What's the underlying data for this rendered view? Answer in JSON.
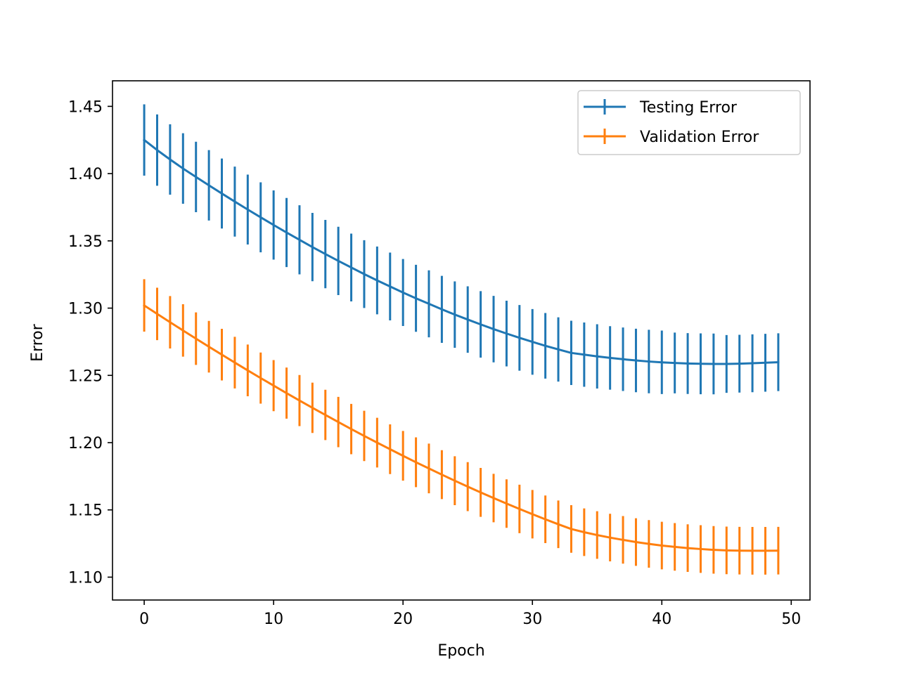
{
  "chart_data": {
    "type": "line",
    "title": "",
    "xlabel": "Epoch",
    "ylabel": "Error",
    "xlim": [
      -2.45,
      51.45
    ],
    "ylim": [
      1.083,
      1.469
    ],
    "xticks": [
      0,
      10,
      20,
      30,
      40,
      50
    ],
    "xtick_labels": [
      "0",
      "10",
      "20",
      "30",
      "40",
      "50"
    ],
    "yticks": [
      1.1,
      1.15,
      1.2,
      1.25,
      1.3,
      1.35,
      1.4,
      1.45
    ],
    "ytick_labels": [
      "1.10",
      "1.15",
      "1.20",
      "1.25",
      "1.30",
      "1.35",
      "1.40",
      "1.45"
    ],
    "grid": false,
    "legend_position": "top-right",
    "x": [
      0,
      1,
      2,
      3,
      4,
      5,
      6,
      7,
      8,
      9,
      10,
      11,
      12,
      13,
      14,
      15,
      16,
      17,
      18,
      19,
      20,
      21,
      22,
      23,
      24,
      25,
      26,
      27,
      28,
      29,
      30,
      31,
      32,
      33,
      34,
      35,
      36,
      37,
      38,
      39,
      40,
      41,
      42,
      43,
      44,
      45,
      46,
      47,
      48,
      49
    ],
    "series": [
      {
        "name": "Testing Error",
        "color": "#1f77b4",
        "values": [
          1.425,
          1.4175,
          1.4105,
          1.4038,
          1.3975,
          1.3913,
          1.3852,
          1.3792,
          1.3733,
          1.3675,
          1.3618,
          1.3562,
          1.3508,
          1.3454,
          1.3402,
          1.3351,
          1.3302,
          1.3253,
          1.3206,
          1.3161,
          1.3116,
          1.3073,
          1.3032,
          1.2991,
          1.2952,
          1.2915,
          1.2879,
          1.2844,
          1.2811,
          1.2779,
          1.2749,
          1.272,
          1.2693,
          1.2667,
          1.2654,
          1.2641,
          1.263,
          1.262,
          1.2611,
          1.2603,
          1.2597,
          1.2592,
          1.2588,
          1.2586,
          1.2585,
          1.2585,
          1.2587,
          1.259,
          1.2594,
          1.2598
        ],
        "errors": [
          0.0265,
          0.0265,
          0.0262,
          0.0262,
          0.0262,
          0.0262,
          0.026,
          0.026,
          0.026,
          0.026,
          0.0257,
          0.0257,
          0.0257,
          0.0254,
          0.0254,
          0.0254,
          0.0252,
          0.0252,
          0.0252,
          0.0252,
          0.0249,
          0.0249,
          0.0249,
          0.0249,
          0.0247,
          0.0247,
          0.0247,
          0.0247,
          0.0244,
          0.0244,
          0.0244,
          0.0244,
          0.0239,
          0.0239,
          0.0239,
          0.0239,
          0.0236,
          0.0236,
          0.0236,
          0.0236,
          0.0236,
          0.0226,
          0.0226,
          0.0226,
          0.0226,
          0.0215,
          0.0215,
          0.0215,
          0.0215,
          0.0215
        ]
      },
      {
        "name": "Validation Error",
        "color": "#ff7f0e",
        "values": [
          1.302,
          1.2957,
          1.2895,
          1.2834,
          1.2773,
          1.2713,
          1.2654,
          1.2595,
          1.2537,
          1.248,
          1.2424,
          1.2368,
          1.2313,
          1.2259,
          1.2206,
          1.2153,
          1.2101,
          1.205,
          1.2,
          1.1951,
          1.1902,
          1.1854,
          1.1808,
          1.1762,
          1.1717,
          1.1673,
          1.163,
          1.1588,
          1.1547,
          1.1507,
          1.1468,
          1.143,
          1.1393,
          1.1358,
          1.1334,
          1.1313,
          1.1294,
          1.1277,
          1.1261,
          1.1247,
          1.1235,
          1.1225,
          1.1216,
          1.1209,
          1.1203,
          1.1199,
          1.1197,
          1.1196,
          1.1196,
          1.1197
        ],
        "errors": [
          0.0195,
          0.0195,
          0.0195,
          0.0195,
          0.0195,
          0.0192,
          0.0192,
          0.0192,
          0.0192,
          0.019,
          0.019,
          0.019,
          0.019,
          0.0187,
          0.0187,
          0.0187,
          0.0187,
          0.0187,
          0.0185,
          0.0185,
          0.0185,
          0.0185,
          0.0185,
          0.0182,
          0.0182,
          0.0182,
          0.0182,
          0.018,
          0.018,
          0.018,
          0.018,
          0.0177,
          0.0177,
          0.0177,
          0.0177,
          0.0177,
          0.0177,
          0.0177,
          0.0177,
          0.0177,
          0.0177,
          0.0177,
          0.0177,
          0.0177,
          0.0177,
          0.0177,
          0.0177,
          0.0177,
          0.0177,
          0.0177
        ]
      }
    ]
  }
}
